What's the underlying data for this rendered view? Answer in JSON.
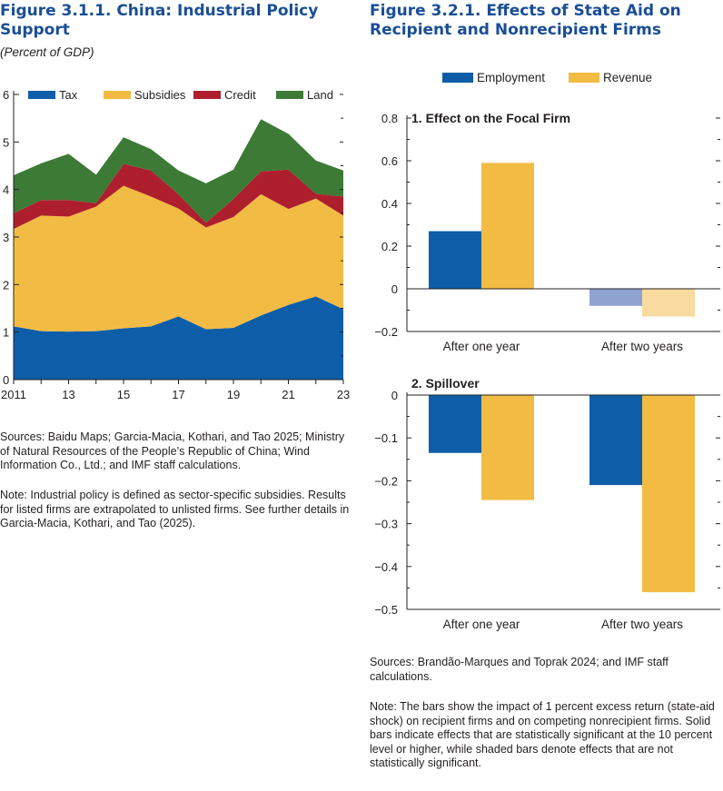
{
  "fig1": {
    "title_line1": "Figure 3.1.1.  China: Industrial Policy",
    "title_line2": "Support",
    "subtitle": "(Percent of GDP)",
    "sources": "Sources: Baidu Maps; Garcia-Macia, Kothari, and Tao 2025; Ministry of Natural Resources of the People’s Republic of China; Wind Information Co., Ltd.; and IMF staff calculations.",
    "note": "Note: Industrial policy is defined as sector-specific subsidies. Results for listed firms are extrapolated to unlisted firms. See further details in Garcia-Macia, Kothari, and Tao (2025)."
  },
  "fig2": {
    "title_line1": "Figure 3.2.1.  Effects of State Aid on",
    "title_line2": "Recipient and Nonrecipient Firms",
    "sources": "Sources: Brandão-Marques and Toprak 2024; and IMF staff calculations.",
    "note": "Note: The bars show the impact of 1 percent excess return (state-aid shock) on recipient firms and on competing nonrecipient firms. Solid bars indicate effects that are statistically significant at the 10 percent level or higher, while shaded bars denote effects that are not statistically significant."
  },
  "colors": {
    "blue": "#0e5da8",
    "yellow": "#f2bc44",
    "red": "#ae1f2e",
    "green": "#3d7a36",
    "blue_faded": "#8fa3d1",
    "yellow_faded": "#f9dba0",
    "title_blue": "#1a4e95"
  },
  "chart_data": [
    {
      "type": "area",
      "stacked": true,
      "x": [
        2011,
        2012,
        2013,
        2014,
        2015,
        2016,
        2017,
        2018,
        2019,
        2020,
        2021,
        2022,
        2023
      ],
      "x_tick_labels": [
        "2011",
        "13",
        "15",
        "17",
        "19",
        "21",
        "23"
      ],
      "x_tick_values": [
        2011,
        2013,
        2015,
        2017,
        2019,
        2021,
        2023
      ],
      "y_ticks": [
        0,
        1,
        2,
        3,
        4,
        5,
        6
      ],
      "ylim": [
        0,
        6
      ],
      "series": [
        {
          "name": "Tax",
          "color": "#0e5da8",
          "values": [
            1.12,
            1.02,
            1.01,
            1.02,
            1.08,
            1.12,
            1.33,
            1.06,
            1.09,
            1.35,
            1.57,
            1.75,
            1.48
          ]
        },
        {
          "name": "Subsidies",
          "color": "#f2bc44",
          "values": [
            2.05,
            2.43,
            2.42,
            2.62,
            3.0,
            2.73,
            2.27,
            2.14,
            2.33,
            2.55,
            2.02,
            2.06,
            1.97
          ]
        },
        {
          "name": "Credit",
          "color": "#ae1f2e",
          "values": [
            0.33,
            0.33,
            0.35,
            0.07,
            0.46,
            0.55,
            0.3,
            0.1,
            0.38,
            0.48,
            0.83,
            0.1,
            0.4
          ]
        },
        {
          "name": "Land",
          "color": "#3d7a36",
          "values": [
            0.8,
            0.77,
            0.97,
            0.6,
            0.56,
            0.45,
            0.5,
            0.83,
            0.62,
            1.1,
            0.75,
            0.7,
            0.55
          ]
        }
      ],
      "legend": [
        "Tax",
        "Subsidies",
        "Credit",
        "Land"
      ],
      "legend_position": "top"
    },
    {
      "type": "bar",
      "panel_title": "1. Effect on the Focal Firm",
      "categories": [
        "After one year",
        "After two years"
      ],
      "series": [
        {
          "name": "Employment",
          "values": [
            0.27,
            -0.08
          ],
          "significant": [
            true,
            false
          ]
        },
        {
          "name": "Revenue",
          "values": [
            0.59,
            -0.13
          ],
          "significant": [
            true,
            false
          ]
        }
      ],
      "ylim": [
        -0.2,
        0.8
      ],
      "y_ticks": [
        -0.2,
        0,
        0.2,
        0.4,
        0.6,
        0.8
      ],
      "y_tick_labels": [
        "−0.2",
        "0",
        "0.2",
        "0.4",
        "0.6",
        "0.8"
      ]
    },
    {
      "type": "bar",
      "panel_title": "2. Spillover",
      "categories": [
        "After one year",
        "After two years"
      ],
      "series": [
        {
          "name": "Employment",
          "values": [
            -0.135,
            -0.21
          ],
          "significant": [
            true,
            true
          ]
        },
        {
          "name": "Revenue",
          "values": [
            -0.245,
            -0.46
          ],
          "significant": [
            true,
            true
          ]
        }
      ],
      "ylim": [
        -0.5,
        0
      ],
      "y_ticks": [
        -0.5,
        -0.4,
        -0.3,
        -0.2,
        -0.1,
        0
      ],
      "y_tick_labels": [
        "−0.5",
        "−0.4",
        "−0.3",
        "−0.2",
        "−0.1",
        "0"
      ]
    }
  ],
  "bar_legend": [
    "Employment",
    "Revenue"
  ]
}
